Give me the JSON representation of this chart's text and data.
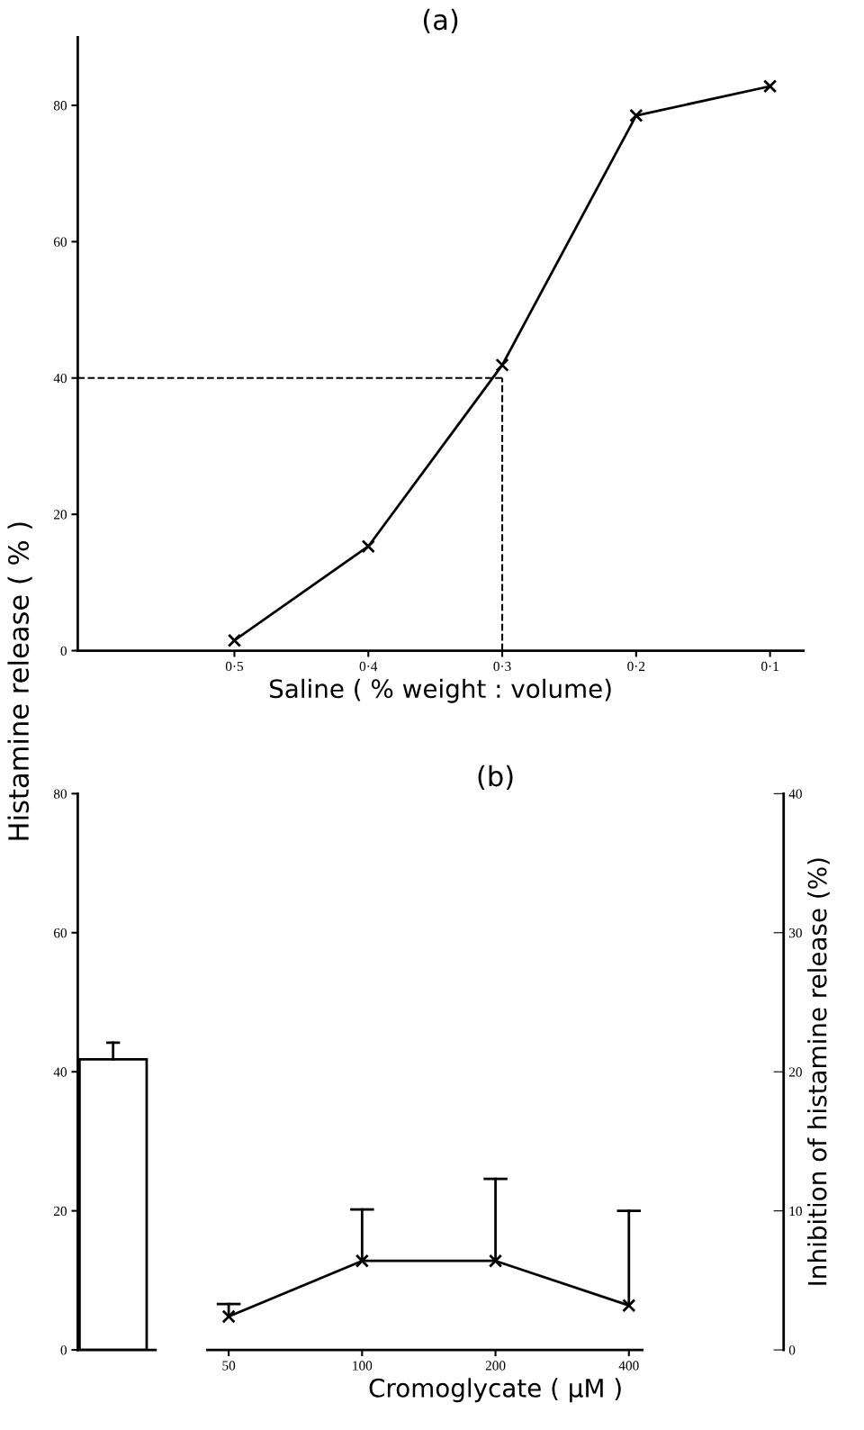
{
  "chart_data": [
    {
      "type": "line",
      "title": "(a)",
      "xlabel": "Saline ( % weight : volume)",
      "ylabel": "Histamine release ( % )",
      "categories": [
        "0·5",
        "0·4",
        "0·3",
        "0·2",
        "0·1"
      ],
      "series": [
        {
          "color": "#000000",
          "values": [
            1.5,
            15.3,
            41.9,
            78.5,
            82.8
          ],
          "marker": "cross",
          "line_style": "solid"
        }
      ],
      "ref_lines": [
        {
          "axis": "y",
          "value": 40,
          "color": "#000000",
          "line_style": "dashed"
        },
        {
          "axis": "x",
          "value": "0·3",
          "color": "#000000",
          "line_style": "dashed"
        }
      ],
      "ylim": [
        0,
        90
      ],
      "yticks": [
        0,
        20,
        40,
        60,
        80
      ],
      "grid": false,
      "legend": false
    },
    {
      "type": "bar",
      "categories": [
        null
      ],
      "series": [
        {
          "color": "#ffffff",
          "values": [
            41.8
          ],
          "errors": [
            [
              41.8,
              44.2
            ]
          ]
        }
      ],
      "ylim": [
        0,
        80
      ],
      "yticks": [
        0,
        20,
        40,
        60,
        80
      ],
      "grid": false,
      "legend": false
    },
    {
      "type": "line",
      "title": "(b)",
      "xlabel": "Cromoglycate ( µM )",
      "y2label": "Inhibition of histamine release (%)",
      "categories": [
        "50",
        "100",
        "200",
        "400"
      ],
      "series": [
        {
          "color": "#000000",
          "values": [
            2.4,
            6.4,
            6.4,
            3.2
          ],
          "axis": "y2",
          "errors": [
            [
              2.4,
              3.3
            ],
            [
              6.4,
              10.1
            ],
            [
              6.4,
              12.3
            ],
            [
              3.2,
              10.0
            ]
          ],
          "marker": "cross",
          "line_style": "solid"
        }
      ],
      "y2lim": [
        0,
        40
      ],
      "y2ticks": [
        0,
        10,
        20,
        30,
        40
      ],
      "grid": false,
      "legend": false
    }
  ]
}
